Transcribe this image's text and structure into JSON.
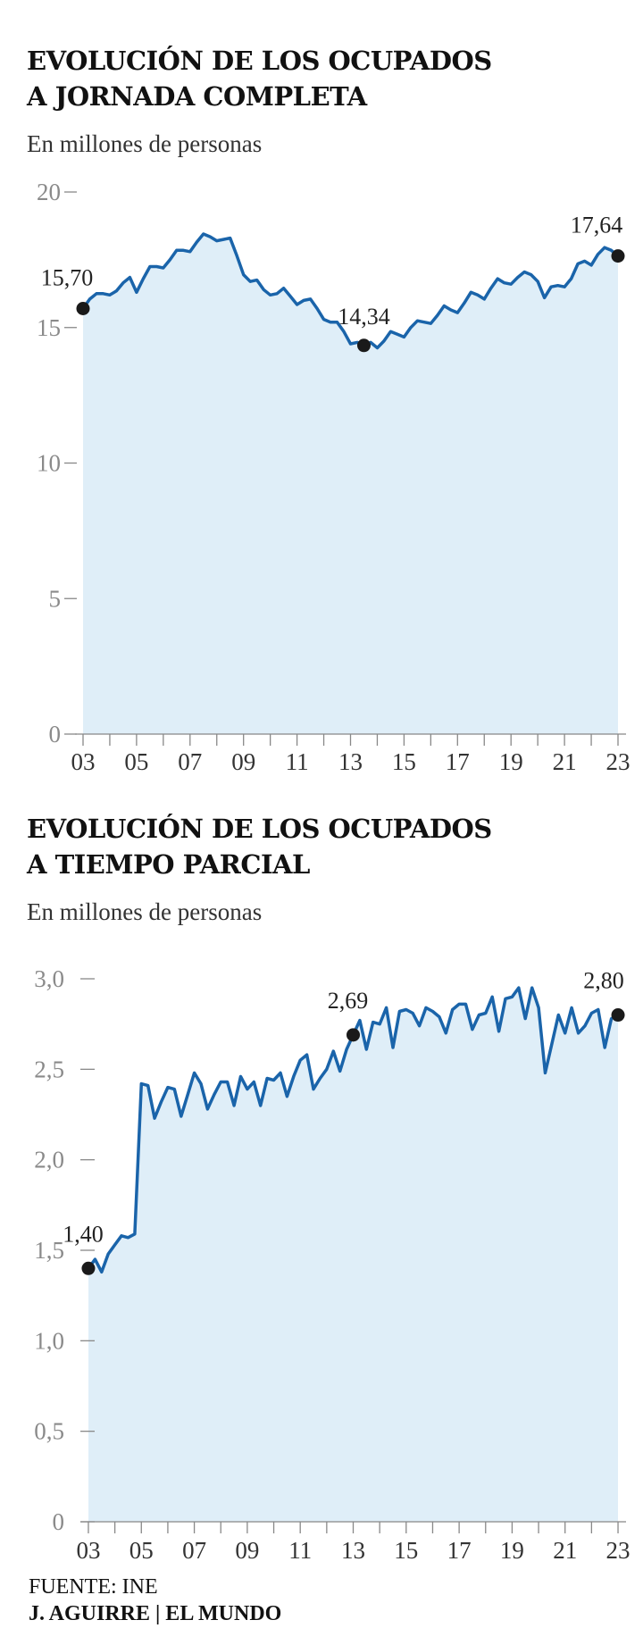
{
  "charts": [
    {
      "title_line1": "EVOLUCIÓN DE LOS OCUPADOS",
      "title_line2": "A JORNADA COMPLETA",
      "subtitle": "En millones de personas"
    },
    {
      "title_line1": "EVOLUCIÓN DE LOS OCUPADOS",
      "title_line2": "A TIEMPO PARCIAL",
      "subtitle": "En millones de personas"
    }
  ],
  "footer": {
    "source": "FUENTE: INE",
    "credit": "J. AGUIRRE | EL MUNDO"
  },
  "colors": {
    "line": "#1a64aa",
    "area": "#dfeef8",
    "axis": "#888888",
    "marker": "#1a1a1a"
  },
  "chart_data": [
    {
      "type": "area",
      "title": "EVOLUCIÓN DE LOS OCUPADOS A JORNADA COMPLETA",
      "ylabel": "En millones de personas",
      "ylim": [
        0,
        20
      ],
      "xlim": [
        2002.9,
        2023.1
      ],
      "yticks": [
        0,
        5,
        10,
        15,
        20
      ],
      "yticklabels": [
        "0",
        "5",
        "10",
        "15",
        "20"
      ],
      "xticks": [
        2003,
        2005,
        2007,
        2009,
        2011,
        2013,
        2015,
        2017,
        2019,
        2021,
        2023
      ],
      "xticklabels": [
        "03",
        "05",
        "07",
        "09",
        "11",
        "13",
        "15",
        "17",
        "19",
        "21",
        "23"
      ],
      "grid": false,
      "series": [
        {
          "x": [
            2003.0,
            2003.25,
            2003.5,
            2003.75,
            2004.0,
            2004.25,
            2004.5,
            2004.75,
            2005.0,
            2005.25,
            2005.5,
            2005.75,
            2006.0,
            2006.25,
            2006.5,
            2006.75,
            2007.0,
            2007.25,
            2007.5,
            2007.75,
            2008.0,
            2008.25,
            2008.5,
            2008.75,
            2009.0,
            2009.25,
            2009.5,
            2009.75,
            2010.0,
            2010.25,
            2010.5,
            2010.75,
            2011.0,
            2011.25,
            2011.5,
            2011.75,
            2012.0,
            2012.25,
            2012.5,
            2012.75,
            2013.0,
            2013.25,
            2013.5,
            2013.75,
            2014.0,
            2014.25,
            2014.5,
            2014.75,
            2015.0,
            2015.25,
            2015.5,
            2015.75,
            2016.0,
            2016.25,
            2016.5,
            2016.75,
            2017.0,
            2017.25,
            2017.5,
            2017.75,
            2018.0,
            2018.25,
            2018.5,
            2018.75,
            2019.0,
            2019.25,
            2019.5,
            2019.75,
            2020.0,
            2020.25,
            2020.5,
            2020.75,
            2021.0,
            2021.25,
            2021.5,
            2021.75,
            2022.0,
            2022.25,
            2022.5,
            2022.75,
            2023.0
          ],
          "y": [
            15.7,
            16.05,
            16.25,
            16.25,
            16.2,
            16.35,
            16.65,
            16.85,
            16.3,
            16.8,
            17.25,
            17.25,
            17.2,
            17.5,
            17.85,
            17.85,
            17.8,
            18.15,
            18.45,
            18.35,
            18.2,
            18.25,
            18.3,
            17.65,
            16.95,
            16.7,
            16.75,
            16.4,
            16.2,
            16.25,
            16.45,
            16.15,
            15.85,
            16.0,
            16.05,
            15.7,
            15.3,
            15.2,
            15.2,
            14.85,
            14.4,
            14.45,
            14.34,
            14.45,
            14.25,
            14.5,
            14.85,
            14.75,
            14.65,
            15.0,
            15.25,
            15.2,
            15.15,
            15.45,
            15.8,
            15.65,
            15.55,
            15.9,
            16.3,
            16.2,
            16.05,
            16.45,
            16.8,
            16.65,
            16.6,
            16.85,
            17.05,
            16.95,
            16.7,
            16.1,
            16.5,
            16.55,
            16.5,
            16.8,
            17.35,
            17.45,
            17.3,
            17.7,
            17.95,
            17.85,
            17.64
          ]
        }
      ],
      "annotations": [
        {
          "label": "15,70",
          "x": 2003.0,
          "y": 15.7
        },
        {
          "label": "14,34",
          "x": 2013.5,
          "y": 14.34
        },
        {
          "label": "17,64",
          "x": 2023.0,
          "y": 17.64
        }
      ]
    },
    {
      "type": "area",
      "title": "EVOLUCIÓN DE LOS OCUPADOS A TIEMPO PARCIAL",
      "ylabel": "En millones de personas",
      "ylim": [
        0,
        3.0
      ],
      "xlim": [
        2002.9,
        2023.1
      ],
      "yticks": [
        0,
        0.5,
        1.0,
        1.5,
        2.0,
        2.5,
        3.0
      ],
      "yticklabels": [
        "0",
        "0,5",
        "1,0",
        "1,5",
        "2,0",
        "2,5",
        "3,0"
      ],
      "xticks": [
        2003,
        2005,
        2007,
        2009,
        2011,
        2013,
        2015,
        2017,
        2019,
        2021,
        2023
      ],
      "xticklabels": [
        "03",
        "05",
        "07",
        "09",
        "11",
        "13",
        "15",
        "17",
        "19",
        "21",
        "23"
      ],
      "grid": false,
      "series": [
        {
          "x": [
            2003.0,
            2003.25,
            2003.5,
            2003.75,
            2004.0,
            2004.25,
            2004.5,
            2004.75,
            2005.0,
            2005.25,
            2005.5,
            2005.75,
            2006.0,
            2006.25,
            2006.5,
            2006.75,
            2007.0,
            2007.25,
            2007.5,
            2007.75,
            2008.0,
            2008.25,
            2008.5,
            2008.75,
            2009.0,
            2009.25,
            2009.5,
            2009.75,
            2010.0,
            2010.25,
            2010.5,
            2010.75,
            2011.0,
            2011.25,
            2011.5,
            2011.75,
            2012.0,
            2012.25,
            2012.5,
            2012.75,
            2013.0,
            2013.25,
            2013.5,
            2013.75,
            2014.0,
            2014.25,
            2014.5,
            2014.75,
            2015.0,
            2015.25,
            2015.5,
            2015.75,
            2016.0,
            2016.25,
            2016.5,
            2016.75,
            2017.0,
            2017.25,
            2017.5,
            2017.75,
            2018.0,
            2018.25,
            2018.5,
            2018.75,
            2019.0,
            2019.25,
            2019.5,
            2019.75,
            2020.0,
            2020.25,
            2020.5,
            2020.75,
            2021.0,
            2021.25,
            2021.5,
            2021.75,
            2022.0,
            2022.25,
            2022.5,
            2022.75,
            2023.0
          ],
          "y": [
            1.4,
            1.45,
            1.38,
            1.48,
            1.53,
            1.58,
            1.57,
            1.59,
            2.42,
            2.41,
            2.23,
            2.32,
            2.4,
            2.39,
            2.24,
            2.36,
            2.48,
            2.42,
            2.28,
            2.36,
            2.43,
            2.43,
            2.3,
            2.46,
            2.39,
            2.43,
            2.3,
            2.45,
            2.44,
            2.48,
            2.35,
            2.46,
            2.55,
            2.58,
            2.39,
            2.45,
            2.5,
            2.6,
            2.49,
            2.61,
            2.69,
            2.77,
            2.61,
            2.76,
            2.75,
            2.84,
            2.62,
            2.82,
            2.83,
            2.81,
            2.74,
            2.84,
            2.82,
            2.79,
            2.7,
            2.83,
            2.86,
            2.86,
            2.72,
            2.8,
            2.81,
            2.9,
            2.71,
            2.89,
            2.9,
            2.95,
            2.78,
            2.95,
            2.84,
            2.48,
            2.64,
            2.8,
            2.7,
            2.84,
            2.7,
            2.74,
            2.81,
            2.83,
            2.62,
            2.78,
            2.8
          ]
        }
      ],
      "annotations": [
        {
          "label": "1,40",
          "x": 2003.0,
          "y": 1.4
        },
        {
          "label": "2,69",
          "x": 2013.0,
          "y": 2.69
        },
        {
          "label": "2,80",
          "x": 2023.0,
          "y": 2.8
        }
      ]
    }
  ]
}
